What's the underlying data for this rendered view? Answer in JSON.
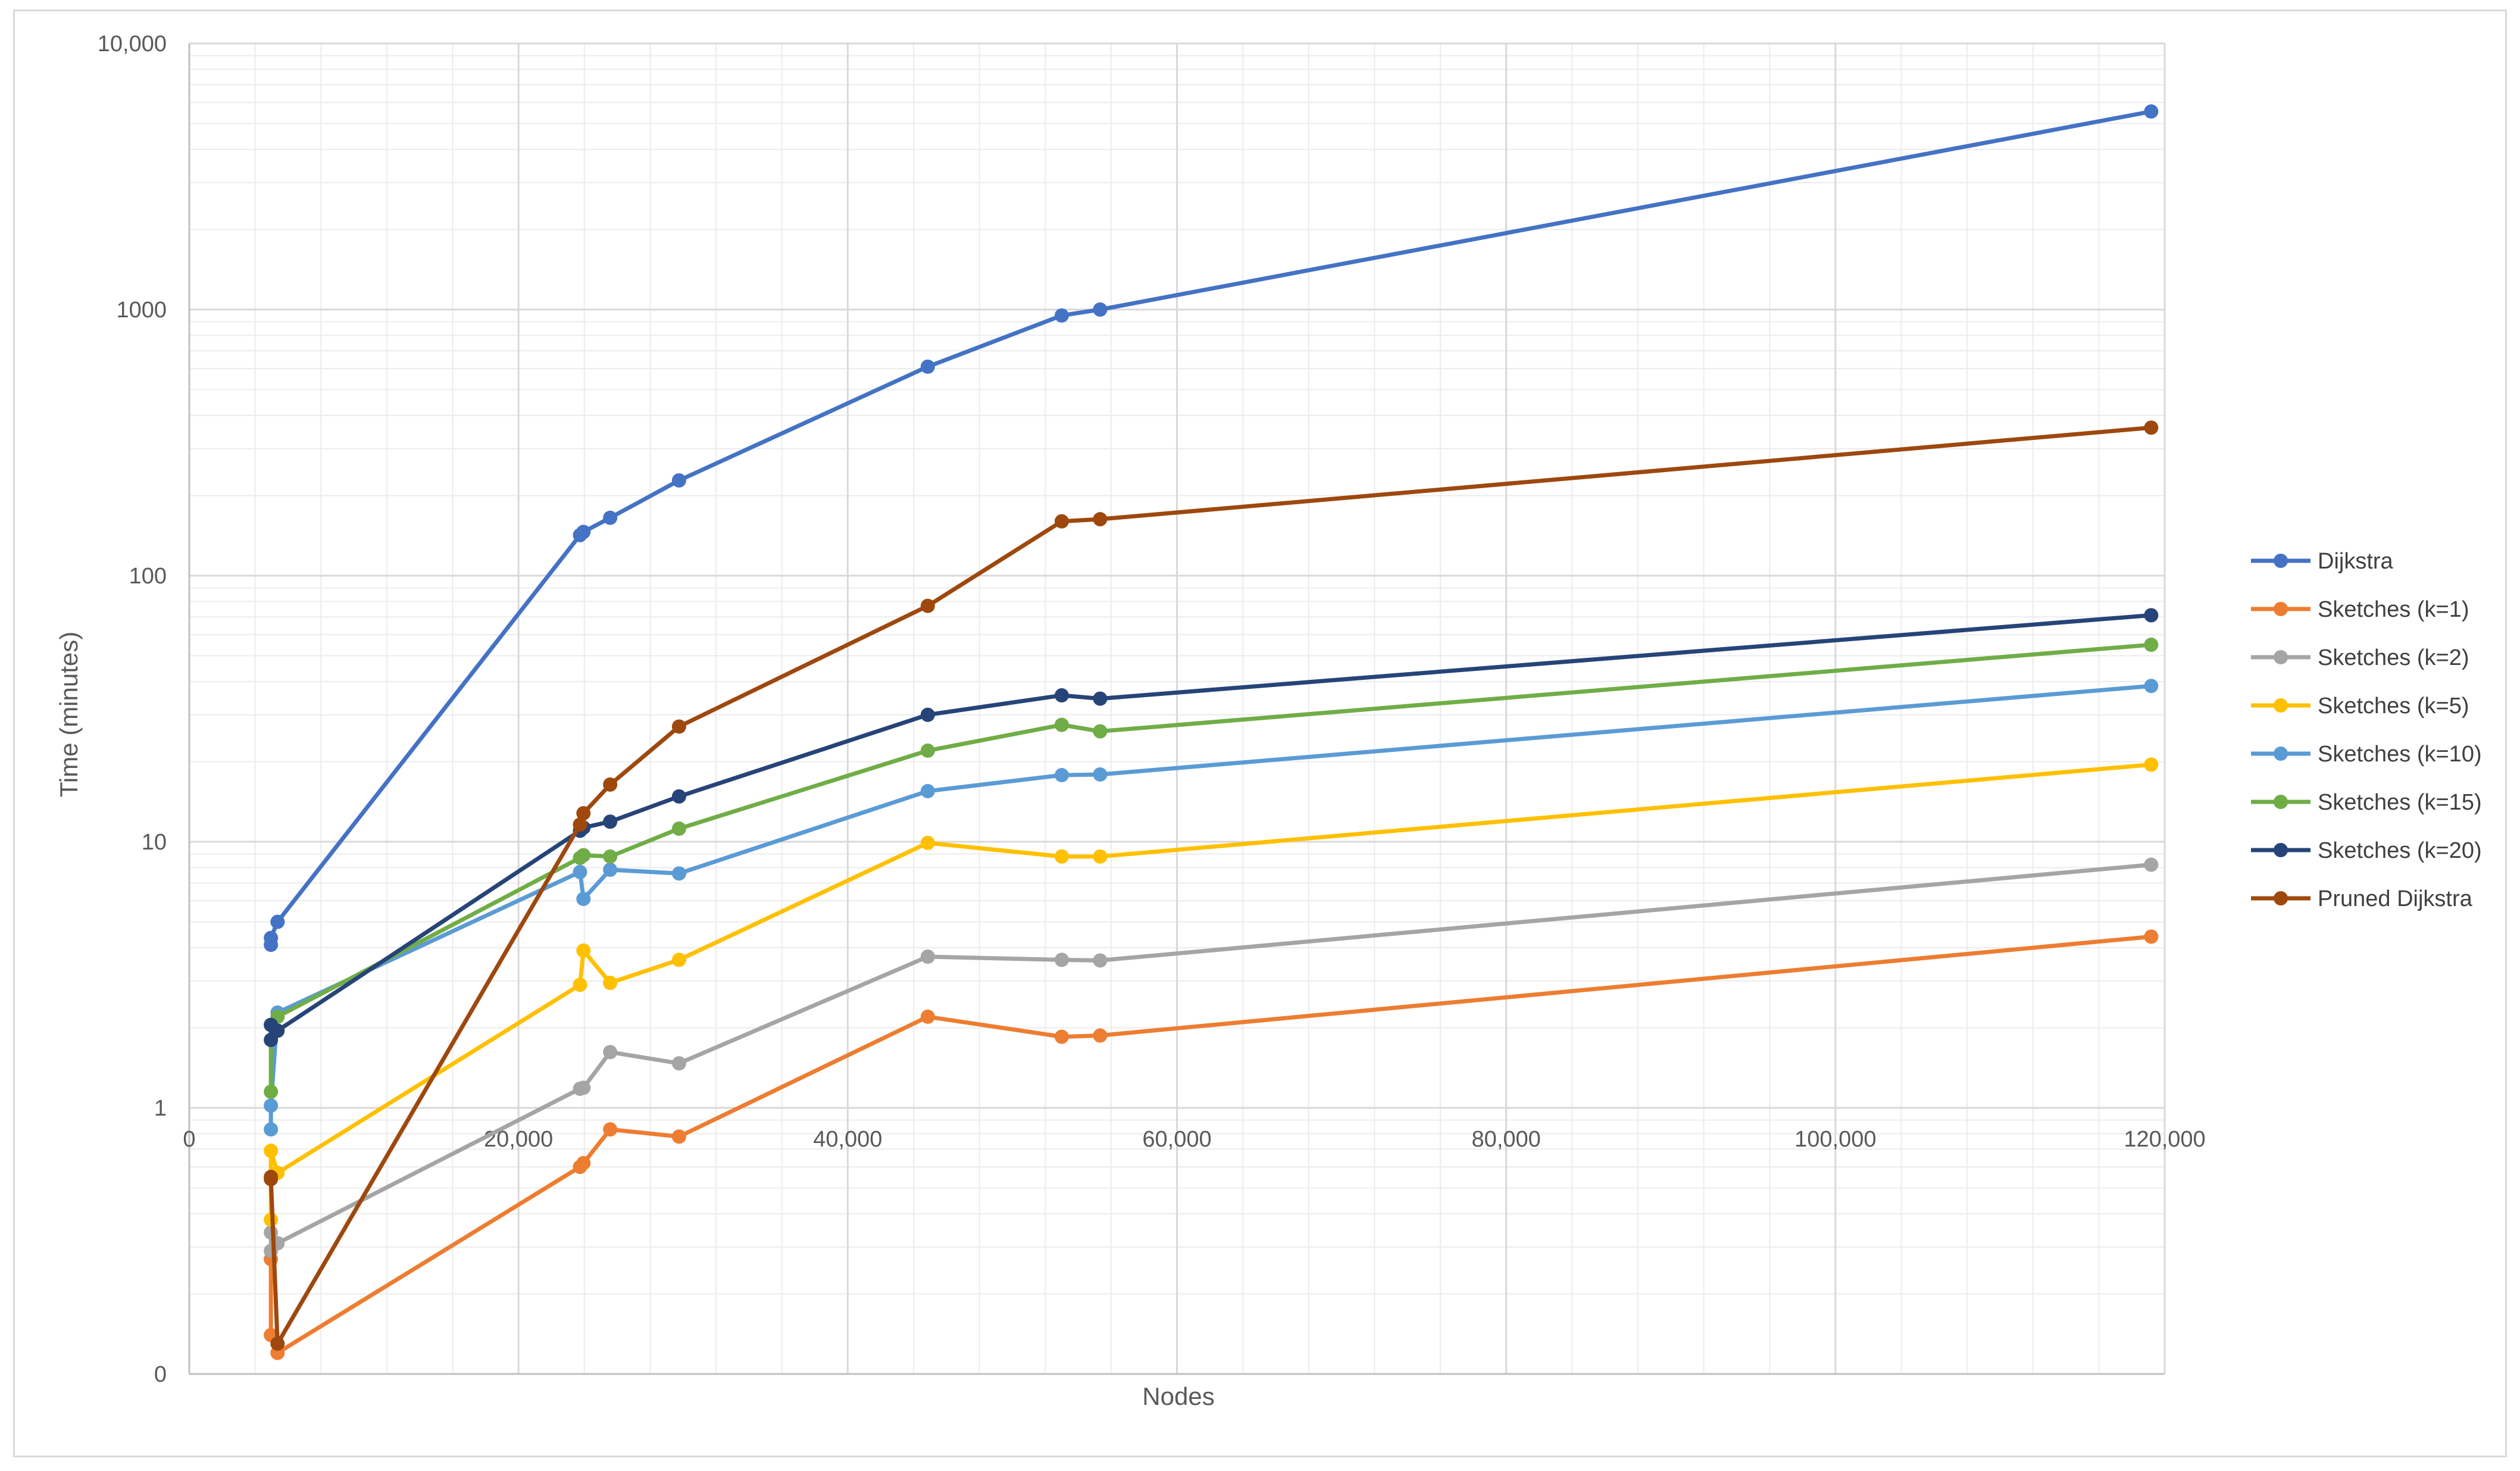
{
  "chart_data": {
    "type": "line",
    "title": "",
    "xlabel": "Nodes",
    "ylabel": "Time (minutes)",
    "x_scale": "linear",
    "y_scale": "log",
    "xlim": [
      0,
      120000
    ],
    "ylim_labels": [
      "0",
      "1",
      "10",
      "100",
      "1000",
      "10,000"
    ],
    "x_tick_labels": [
      "0",
      "20,000",
      "40,000",
      "60,000",
      "80,000",
      "100,000",
      "120,000"
    ],
    "x_ticks": [
      0,
      20000,
      40000,
      60000,
      80000,
      100000,
      120000
    ],
    "grid": "major and minor",
    "legend_position": "right",
    "x": [
      4959,
      4959,
      5363,
      23737,
      23946,
      25568,
      29753,
      44862,
      53000,
      55332,
      119181
    ],
    "series": [
      {
        "name": "Dijkstra",
        "color": "#4472c4",
        "values": [
          4.1,
          4.35,
          5.0,
          142,
          146,
          165,
          228,
          610,
          950,
          1000,
          5550
        ]
      },
      {
        "name": "Sketches (k=1)",
        "color": "#ed7d31",
        "values": [
          0.27,
          0.14,
          0.12,
          0.6,
          0.62,
          0.83,
          0.78,
          2.2,
          1.85,
          1.87,
          4.4
        ]
      },
      {
        "name": "Sketches (k=2)",
        "color": "#a5a5a5",
        "values": [
          0.29,
          0.34,
          0.31,
          1.18,
          1.19,
          1.62,
          1.47,
          3.7,
          3.6,
          3.58,
          8.2
        ]
      },
      {
        "name": "Sketches (k=5)",
        "color": "#ffc000",
        "values": [
          0.38,
          0.69,
          0.57,
          2.9,
          3.9,
          2.95,
          3.6,
          9.9,
          8.8,
          8.8,
          19.5
        ]
      },
      {
        "name": "Sketches (k=10)",
        "color": "#5b9bd5",
        "values": [
          0.83,
          1.02,
          2.28,
          7.7,
          6.1,
          7.85,
          7.6,
          15.5,
          17.8,
          17.9,
          38.5
        ]
      },
      {
        "name": "Sketches (k=15)",
        "color": "#70ad47",
        "values": [
          1.15,
          2.05,
          2.2,
          8.7,
          8.9,
          8.8,
          11.2,
          22,
          27.5,
          26,
          55
        ]
      },
      {
        "name": "Sketches (k=20)",
        "color": "#264478",
        "values": [
          1.8,
          2.05,
          1.95,
          11,
          11.3,
          11.9,
          14.8,
          30,
          35.5,
          34.5,
          71
        ]
      },
      {
        "name": "Pruned Dijkstra",
        "color": "#9e480e",
        "values": [
          0.55,
          0.54,
          0.13,
          11.6,
          12.8,
          16.4,
          27.1,
          77,
          160,
          163,
          360
        ]
      }
    ]
  }
}
